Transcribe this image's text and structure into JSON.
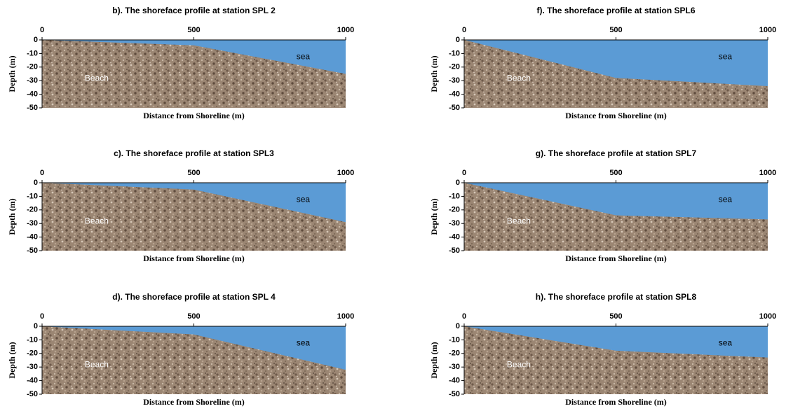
{
  "chart_data": [
    {
      "type": "area",
      "title": "b). The shoreface profile at station SPL 2",
      "xlabel": "Distance from Shoreline (m)",
      "ylabel": "Depth (m)",
      "x": [
        0,
        500,
        1000
      ],
      "values": [
        0,
        -4,
        -25
      ],
      "xlim": [
        0,
        1000
      ],
      "xticks": [
        0,
        500,
        1000
      ],
      "ylim": [
        -50,
        0
      ],
      "yticks": [
        0,
        -10,
        -20,
        -30,
        -40,
        -50
      ],
      "sea_label": "sea",
      "land_label": "Beach",
      "sea_color": "#5b9bd5"
    },
    {
      "type": "area",
      "title": "f). The shoreface profile at station SPL6",
      "xlabel": "Distance from Shoreline (m)",
      "ylabel": "Depth (m)",
      "x": [
        0,
        500,
        1000
      ],
      "values": [
        0,
        -28,
        -34
      ],
      "xlim": [
        0,
        1000
      ],
      "xticks": [
        0,
        500,
        1000
      ],
      "ylim": [
        -50,
        0
      ],
      "yticks": [
        0,
        -10,
        -20,
        -30,
        -40,
        -50
      ],
      "sea_label": "sea",
      "land_label": "Beach",
      "sea_color": "#5b9bd5"
    },
    {
      "type": "area",
      "title": "c). The shoreface profile at station SPL3",
      "xlabel": "Distance from Shoreline (m)",
      "ylabel": "Depth (m)",
      "x": [
        0,
        500,
        1000
      ],
      "values": [
        0,
        -5,
        -29
      ],
      "xlim": [
        0,
        1000
      ],
      "xticks": [
        0,
        500,
        1000
      ],
      "ylim": [
        -50,
        0
      ],
      "yticks": [
        0,
        -10,
        -20,
        -30,
        -40,
        -50
      ],
      "sea_label": "sea",
      "land_label": "Beach",
      "sea_color": "#5b9bd5"
    },
    {
      "type": "area",
      "title": "g). The shoreface profile at station SPL7",
      "xlabel": "Distance from Shoreline (m)",
      "ylabel": "Depth (m)",
      "x": [
        0,
        500,
        1000
      ],
      "values": [
        0,
        -24,
        -27
      ],
      "xlim": [
        0,
        1000
      ],
      "xticks": [
        0,
        500,
        1000
      ],
      "ylim": [
        -50,
        0
      ],
      "yticks": [
        0,
        -10,
        -20,
        -30,
        -40,
        -50
      ],
      "sea_label": "sea",
      "land_label": "Beach",
      "sea_color": "#5b9bd5"
    },
    {
      "type": "area",
      "title": "d). The shoreface profile at station SPL 4",
      "xlabel": "Distance from Shoreline (m)",
      "ylabel": "Depth (m)",
      "x": [
        0,
        500,
        1000
      ],
      "values": [
        0,
        -6,
        -32
      ],
      "xlim": [
        0,
        1000
      ],
      "xticks": [
        0,
        500,
        1000
      ],
      "ylim": [
        -50,
        0
      ],
      "yticks": [
        0,
        -10,
        -20,
        -30,
        -40,
        -50
      ],
      "sea_label": "sea",
      "land_label": "Beach",
      "sea_color": "#5b9bd5"
    },
    {
      "type": "area",
      "title": "h). The shoreface profile at station SPL8",
      "xlabel": "Distance from Shoreline (m)",
      "ylabel": "Depth (m)",
      "x": [
        0,
        500,
        1000
      ],
      "values": [
        0,
        -18,
        -23
      ],
      "xlim": [
        0,
        1000
      ],
      "xticks": [
        0,
        500,
        1000
      ],
      "ylim": [
        -50,
        0
      ],
      "yticks": [
        0,
        -10,
        -20,
        -30,
        -40,
        -50
      ],
      "sea_label": "sea",
      "land_label": "Beach",
      "sea_color": "#5b9bd5"
    }
  ]
}
